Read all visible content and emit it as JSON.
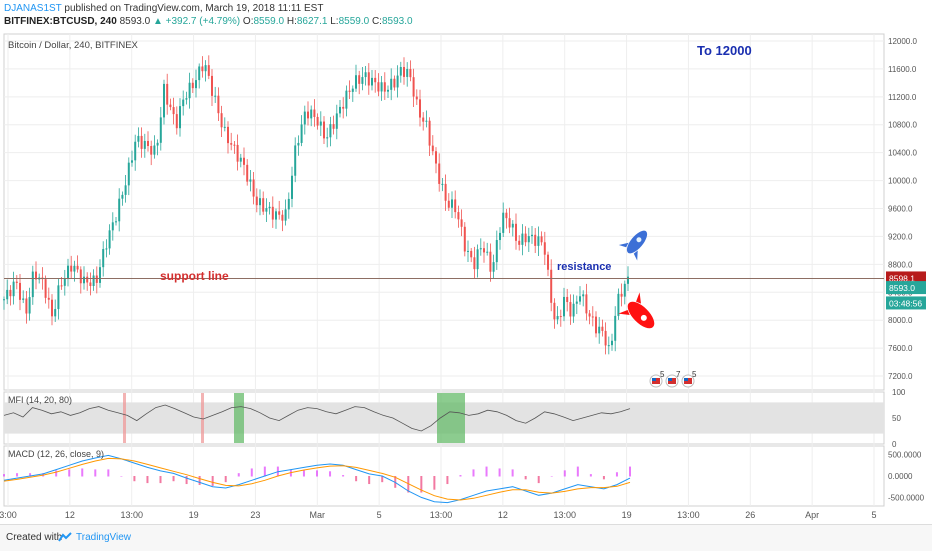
{
  "header": {
    "author": "DJANAS1ST",
    "published": "published on TradingView.com, March 19, 2018 11:11 EST",
    "symbol": "BITFINEX:BTCUSD, 240",
    "last": "8593.0",
    "change": "▲ +392.7 (+4.79%)",
    "o_label": "O:",
    "o_value": "8559.0",
    "h_label": "H:",
    "h_value": "8627.1",
    "l_label": "L:",
    "l_value": "8559.0",
    "c_label": "C:",
    "c_value": "8593.0"
  },
  "footer": {
    "created_with": "Created with",
    "brand": "TradingView"
  },
  "colors": {
    "up": "#26a69a",
    "down": "#ef5350",
    "line": "#8d6e63",
    "accent": "#2196f3"
  },
  "chart_data": {
    "type": "candlestick",
    "title": "Bitcoin / Dollar, 240, BITFINEX",
    "x_ticks": [
      "3:00",
      "12",
      "13:00",
      "19",
      "23",
      "Mar",
      "5",
      "13:00",
      "12",
      "13:00",
      "19",
      "13:00",
      "26",
      "Apr",
      "5"
    ],
    "ylim": [
      7000,
      12100
    ],
    "y_ticks": [
      "12000.0",
      "11600.0",
      "11200.0",
      "10800.0",
      "10400.0",
      "10000.0",
      "9600.0",
      "9200.0",
      "8800.0",
      "8400.0",
      "8000.0",
      "7600.0",
      "7200.0"
    ],
    "price_labels": {
      "line": "8598.1",
      "last": "8593.0",
      "timer": "03:48:56"
    },
    "horizontal_line": 8598.1,
    "close_path": [
      [
        0,
        8300
      ],
      [
        12,
        8550
      ],
      [
        22,
        8100
      ],
      [
        30,
        8700
      ],
      [
        40,
        8500
      ],
      [
        48,
        8050
      ],
      [
        56,
        8500
      ],
      [
        68,
        8800
      ],
      [
        80,
        8550
      ],
      [
        92,
        8550
      ],
      [
        102,
        9100
      ],
      [
        112,
        9500
      ],
      [
        122,
        10000
      ],
      [
        132,
        10600
      ],
      [
        142,
        10500
      ],
      [
        152,
        10400
      ],
      [
        160,
        11300
      ],
      [
        172,
        10800
      ],
      [
        180,
        11200
      ],
      [
        190,
        11400
      ],
      [
        200,
        11700
      ],
      [
        210,
        11200
      ],
      [
        220,
        10700
      ],
      [
        232,
        10400
      ],
      [
        240,
        10200
      ],
      [
        252,
        9700
      ],
      [
        262,
        9600
      ],
      [
        272,
        9500
      ],
      [
        282,
        9500
      ],
      [
        292,
        10500
      ],
      [
        302,
        11000
      ],
      [
        312,
        10900
      ],
      [
        322,
        10600
      ],
      [
        332,
        10900
      ],
      [
        342,
        11200
      ],
      [
        350,
        11400
      ],
      [
        360,
        11500
      ],
      [
        370,
        11400
      ],
      [
        380,
        11300
      ],
      [
        390,
        11400
      ],
      [
        398,
        11600
      ],
      [
        406,
        11500
      ],
      [
        414,
        11000
      ],
      [
        422,
        10800
      ],
      [
        432,
        10200
      ],
      [
        442,
        9700
      ],
      [
        452,
        9600
      ],
      [
        462,
        9000
      ],
      [
        470,
        8800
      ],
      [
        478,
        9100
      ],
      [
        488,
        8700
      ],
      [
        498,
        9500
      ],
      [
        506,
        9400
      ],
      [
        514,
        9100
      ],
      [
        522,
        9200
      ],
      [
        532,
        9150
      ],
      [
        540,
        9100
      ],
      [
        546,
        8400
      ],
      [
        552,
        7900
      ],
      [
        560,
        8300
      ],
      [
        568,
        8100
      ],
      [
        576,
        8400
      ],
      [
        584,
        8100
      ],
      [
        592,
        7900
      ],
      [
        600,
        7800
      ],
      [
        606,
        7500
      ],
      [
        612,
        8200
      ],
      [
        620,
        8500
      ],
      [
        626,
        8593
      ]
    ],
    "annotations": {
      "target": "To 12000",
      "support": "support line",
      "resistance": "resistance"
    },
    "event_badges": [
      "5",
      "7",
      "5"
    ],
    "mfi": {
      "label": "MFI (14, 20, 80)",
      "ylim": [
        0,
        100
      ],
      "y_ticks": [
        "100",
        "50",
        "0"
      ],
      "values": [
        55,
        60,
        52,
        70,
        65,
        58,
        62,
        55,
        60,
        68,
        72,
        65,
        60,
        55,
        45,
        58,
        70,
        75,
        68,
        60,
        52,
        48,
        55,
        62,
        70,
        72,
        68,
        60,
        50,
        45,
        55,
        65,
        70,
        68,
        62,
        58,
        65,
        72,
        70,
        62,
        55,
        50,
        40,
        30,
        25,
        35,
        50,
        62,
        60,
        55,
        58,
        65,
        62,
        55,
        45,
        40,
        50,
        62,
        58,
        52,
        45,
        50,
        55,
        60,
        58,
        62,
        68
      ]
    },
    "macd": {
      "label": "MACD (12, 26, close, 9)",
      "ylim": [
        -700,
        700
      ],
      "y_ticks": [
        "500.0000",
        "0.0000",
        "-500.0000"
      ],
      "macd_line": [
        -100,
        -50,
        0,
        50,
        150,
        250,
        350,
        420,
        480,
        400,
        300,
        200,
        120,
        60,
        -50,
        -150,
        -250,
        -280,
        -200,
        -100,
        0,
        100,
        150,
        200,
        250,
        280,
        250,
        150,
        50,
        0,
        -150,
        -350,
        -500,
        -600,
        -620,
        -550,
        -450,
        -350,
        -300,
        -250,
        -350,
        -450,
        -400,
        -300,
        -200,
        -250,
        -300,
        -200,
        -50
      ],
      "signal_line": [
        -120,
        -80,
        -30,
        20,
        90,
        180,
        270,
        350,
        410,
        400,
        350,
        270,
        190,
        110,
        30,
        -60,
        -150,
        -220,
        -230,
        -180,
        -100,
        0,
        80,
        140,
        190,
        230,
        240,
        200,
        130,
        60,
        -30,
        -180,
        -330,
        -460,
        -540,
        -560,
        -520,
        -450,
        -380,
        -320,
        -320,
        -380,
        -400,
        -360,
        -300,
        -270,
        -270,
        -240,
        -150
      ]
    }
  }
}
